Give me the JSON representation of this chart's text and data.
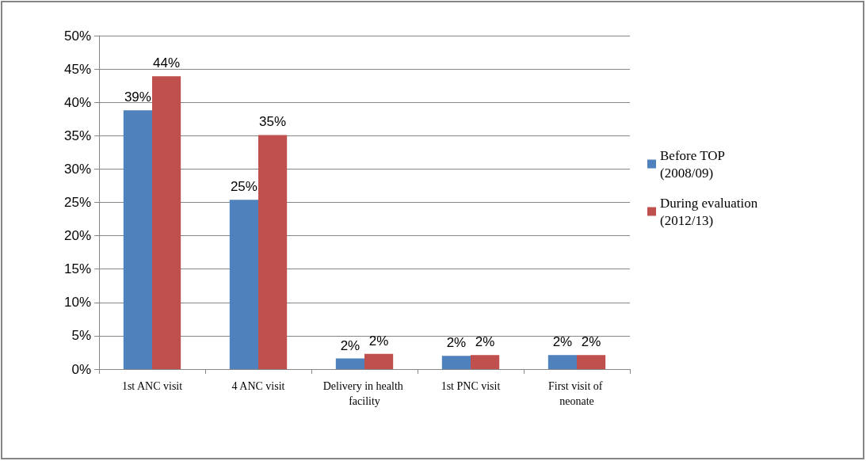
{
  "chart_data": {
    "type": "bar",
    "categories": [
      "1st ANC visit",
      "4 ANC visit",
      "Delivery in health facility",
      "1st PNC visit",
      "First visit of neonate"
    ],
    "series": [
      {
        "name": "Before TOP (2008/09)",
        "color": "#4f81bd",
        "values": [
          38.8,
          25.4,
          1.6,
          2.0,
          2.1
        ],
        "value_labels": [
          "39%",
          "25%",
          "2%",
          "2%",
          "2%"
        ]
      },
      {
        "name": "During evaluation (2012/13)",
        "color": "#c0504d",
        "values": [
          43.9,
          35.1,
          2.3,
          2.1,
          2.1
        ],
        "value_labels": [
          "44%",
          "35%",
          "2%",
          "2%",
          "2%"
        ]
      }
    ],
    "ylim": [
      0,
      50
    ],
    "yticks": [
      {
        "value": 0,
        "label": "0%"
      },
      {
        "value": 5,
        "label": "5%"
      },
      {
        "value": 10,
        "label": "10%"
      },
      {
        "value": 15,
        "label": "15%"
      },
      {
        "value": 20,
        "label": "20%"
      },
      {
        "value": 25,
        "label": "25%"
      },
      {
        "value": 30,
        "label": "30%"
      },
      {
        "value": 35,
        "label": "35%"
      },
      {
        "value": 40,
        "label": "40%"
      },
      {
        "value": 45,
        "label": "45%"
      },
      {
        "value": 50,
        "label": "50%"
      }
    ],
    "grid": "y",
    "legend": "right"
  }
}
